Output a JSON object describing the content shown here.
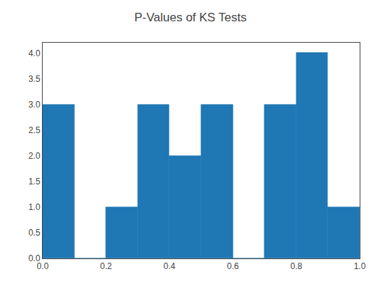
{
  "chart_data": {
    "type": "histogram",
    "title": "P-Values of KS Tests",
    "bins": [
      0.0,
      0.1,
      0.2,
      0.3,
      0.4,
      0.5,
      0.6,
      0.7,
      0.8,
      0.9,
      1.0
    ],
    "values": [
      3,
      0,
      1,
      3,
      2,
      3,
      0,
      3,
      4,
      1
    ],
    "color": "#1f77b4",
    "xlim": [
      0.0,
      1.0
    ],
    "ylim": [
      0.0,
      4.2
    ],
    "xticks": [
      {
        "value": 0.0,
        "label": "0.0"
      },
      0.2,
      0.4,
      0.6,
      0.8,
      {
        "value": 1.0,
        "label": "1.0"
      }
    ],
    "yticks": [
      {
        "value": 0.0,
        "label": "0.0"
      },
      0.5,
      {
        "value": 1.0,
        "label": "1.0"
      },
      1.5,
      {
        "value": 2.0,
        "label": "2.0"
      },
      2.5,
      {
        "value": 3.0,
        "label": "3.0"
      },
      3.5,
      {
        "value": 4.0,
        "label": "4.0"
      }
    ],
    "grid": false
  }
}
